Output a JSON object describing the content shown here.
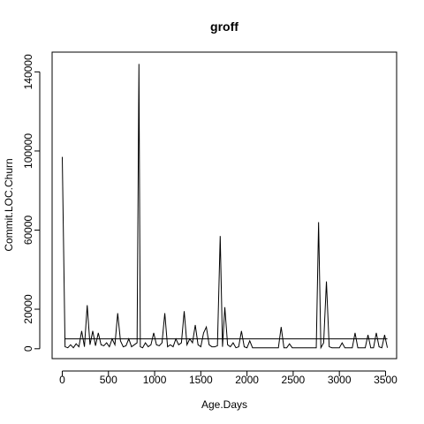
{
  "chart_data": {
    "type": "line",
    "title": "groff",
    "xlabel": "Age.Days",
    "ylabel": "Commit.LOC.Churn",
    "xlim": [
      -110,
      3620
    ],
    "ylim": [
      -5000,
      150000
    ],
    "xticks": [
      0,
      500,
      1000,
      1500,
      2000,
      2500,
      3000,
      3500
    ],
    "yticks": [
      0,
      20000,
      60000,
      100000,
      140000
    ],
    "grid": false,
    "legend": "none",
    "series": [
      {
        "x": [
          0,
          30,
          60,
          90,
          120,
          150,
          180,
          210,
          240,
          270,
          300,
          330,
          360,
          390,
          420,
          450,
          480,
          510,
          540,
          570,
          600,
          630,
          660,
          690,
          720,
          750,
          780,
          810,
          830,
          845,
          870,
          900,
          930,
          960,
          990,
          1020,
          1050,
          1080,
          1110,
          1140,
          1170,
          1200,
          1230,
          1260,
          1290,
          1320,
          1350,
          1380,
          1410,
          1440,
          1470,
          1500,
          1530,
          1560,
          1590,
          1620,
          1650,
          1680,
          1710,
          1735,
          1760,
          1790,
          1820,
          1850,
          1880,
          1910,
          1940,
          1970,
          2000,
          2030,
          2060,
          2100,
          2150,
          2200,
          2250,
          2300,
          2340,
          2370,
          2400,
          2430,
          2460,
          2490,
          2530,
          2600,
          2650,
          2700,
          2750,
          2775,
          2800,
          2830,
          2860,
          2890,
          2920,
          2960,
          3000,
          3030,
          3060,
          3100,
          3140,
          3170,
          3200,
          3240,
          3280,
          3310,
          3340,
          3370,
          3400,
          3430,
          3460,
          3490,
          3520
        ],
        "y": [
          97000,
          1000,
          500,
          2000,
          500,
          2500,
          1000,
          9000,
          1000,
          22000,
          2000,
          9000,
          1500,
          8000,
          2000,
          1500,
          3000,
          1000,
          5000,
          2000,
          18000,
          4000,
          1000,
          1500,
          5000,
          1000,
          2000,
          3000,
          144000,
          1000,
          500,
          3000,
          1000,
          2000,
          8000,
          2000,
          1500,
          3000,
          18000,
          1000,
          2000,
          1000,
          5000,
          2000,
          3000,
          19000,
          2000,
          5000,
          3000,
          12000,
          2000,
          1000,
          8000,
          11000,
          2000,
          1000,
          1000,
          1500,
          57000,
          1000,
          21000,
          2000,
          1000,
          3000,
          500,
          1000,
          9000,
          1000,
          500,
          4000,
          500,
          500,
          500,
          500,
          500,
          500,
          500,
          11000,
          500,
          500,
          2500,
          500,
          500,
          500,
          500,
          500,
          500,
          64000,
          500,
          3000,
          34000,
          1000,
          500,
          500,
          500,
          3000,
          500,
          500,
          500,
          8000,
          500,
          500,
          500,
          7000,
          500,
          500,
          8000,
          1000,
          500,
          7000,
          500
        ]
      },
      {
        "x": [
          30,
          3520
        ],
        "y": [
          5000,
          5000
        ]
      }
    ]
  }
}
